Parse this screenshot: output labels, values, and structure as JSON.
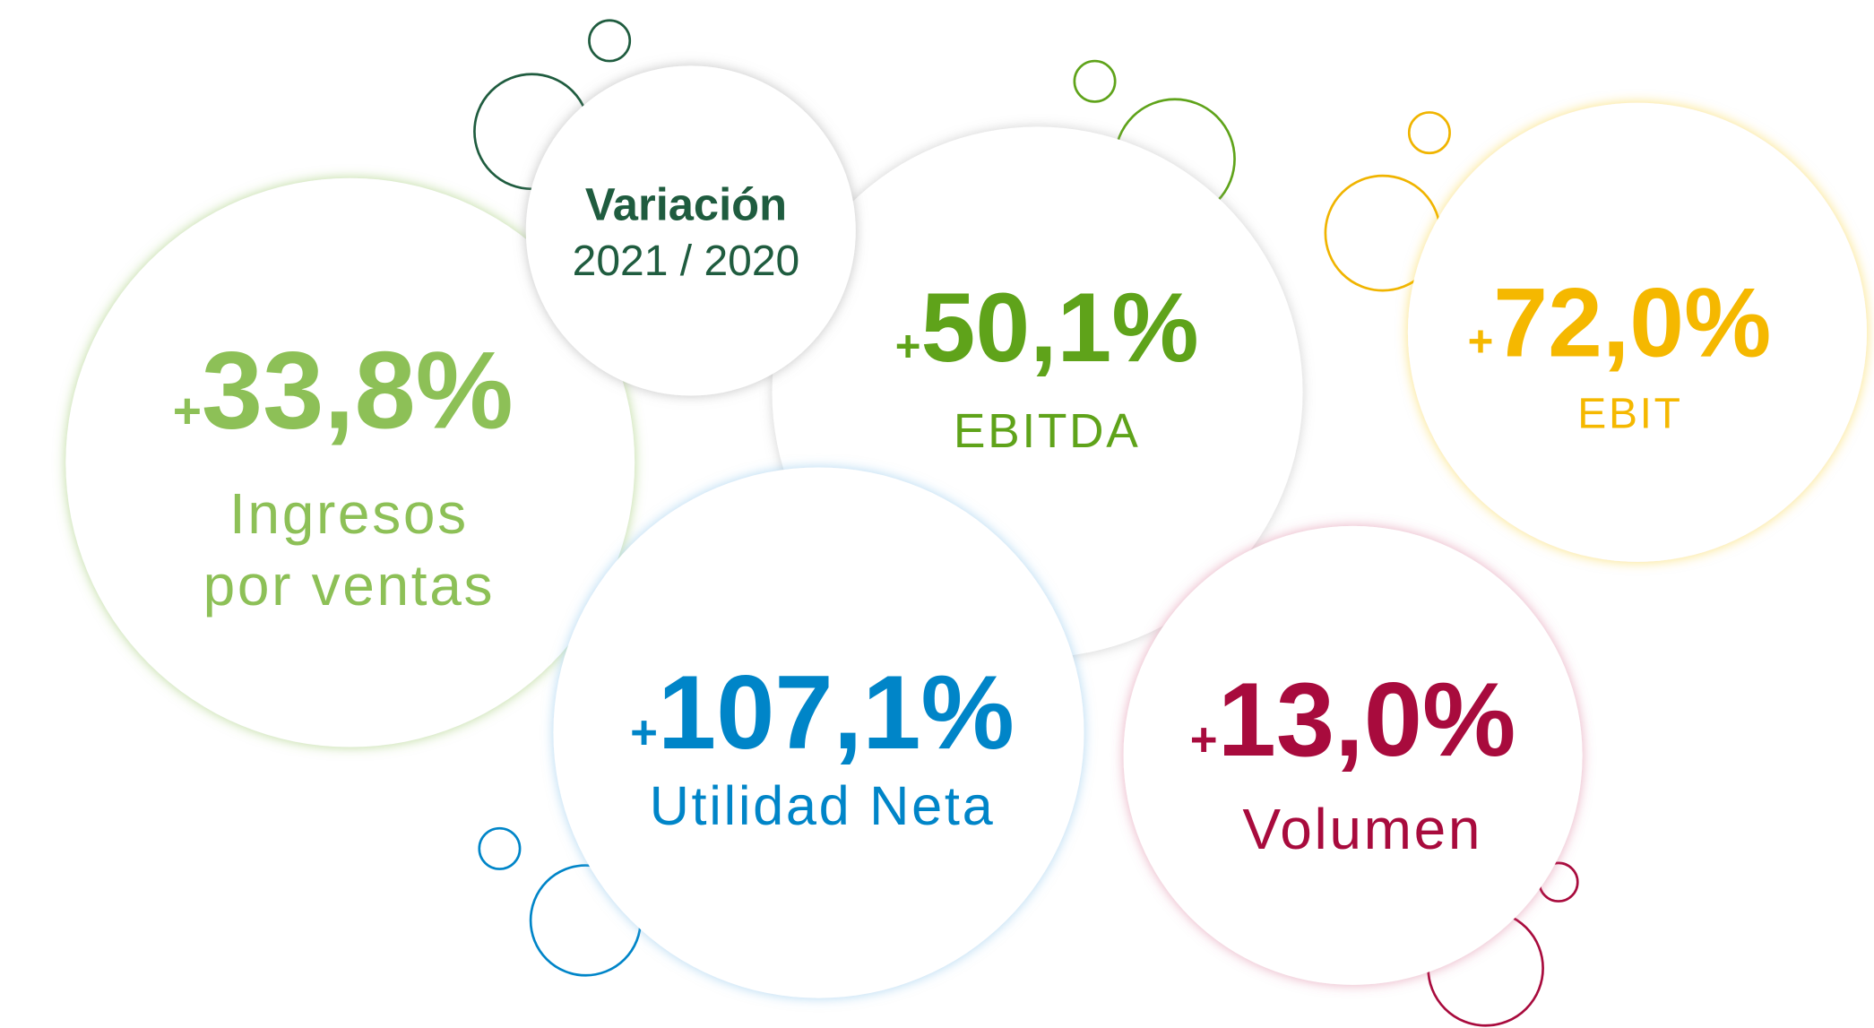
{
  "header": {
    "title": "Variación",
    "subtitle": "2021 / 2020"
  },
  "items": [
    {
      "sign": "+",
      "value": "33,8%",
      "label": [
        "Ingresos",
        "por ventas"
      ]
    },
    {
      "sign": "+",
      "value": "50,1%",
      "label": [
        "EBITDA"
      ]
    },
    {
      "sign": "+",
      "value": "72,0%",
      "label": [
        "EBIT"
      ]
    },
    {
      "sign": "+",
      "value": "107,1%",
      "label": [
        "Utilidad Neta"
      ]
    },
    {
      "sign": "+",
      "value": "13,0%",
      "label": [
        "Volumen"
      ]
    }
  ]
}
